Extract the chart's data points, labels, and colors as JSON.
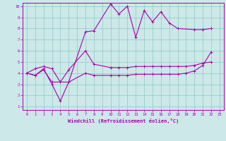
{
  "xlabel": "Windchill (Refroidissement éolien,°C)",
  "bg_color": "#cce8e8",
  "line_color": "#aa00aa",
  "grid_color": "#99cccc",
  "xlim": [
    -0.5,
    23.5
  ],
  "ylim": [
    0.7,
    10.3
  ],
  "xticks": [
    0,
    1,
    2,
    3,
    4,
    5,
    6,
    7,
    8,
    9,
    10,
    11,
    12,
    13,
    14,
    15,
    16,
    17,
    18,
    19,
    20,
    21,
    22,
    23
  ],
  "yticks": [
    1,
    2,
    3,
    4,
    5,
    6,
    7,
    8,
    9,
    10
  ],
  "line1_x": [
    0,
    1,
    2,
    3,
    4,
    5,
    7,
    8,
    10,
    11,
    12,
    13,
    14,
    15,
    16,
    17,
    18,
    20,
    21,
    22
  ],
  "line1_y": [
    4.0,
    3.8,
    4.4,
    3.0,
    1.5,
    3.2,
    7.7,
    7.8,
    10.2,
    9.3,
    10.0,
    7.2,
    9.6,
    8.6,
    9.5,
    8.5,
    8.0,
    7.9,
    7.9,
    8.0
  ],
  "line2_x": [
    0,
    1,
    2,
    3,
    4,
    5,
    7,
    8,
    10,
    11,
    12,
    13,
    14,
    15,
    16,
    17,
    18,
    19,
    20,
    21,
    22
  ],
  "line2_y": [
    4.0,
    4.4,
    4.6,
    4.4,
    3.2,
    4.3,
    6.0,
    4.8,
    4.5,
    4.5,
    4.5,
    4.6,
    4.6,
    4.6,
    4.6,
    4.6,
    4.6,
    4.6,
    4.7,
    4.9,
    5.0
  ],
  "line3_x": [
    0,
    1,
    2,
    3,
    4,
    5,
    7,
    8,
    10,
    11,
    12,
    13,
    14,
    15,
    16,
    17,
    18,
    19,
    20,
    21,
    22
  ],
  "line3_y": [
    4.0,
    3.8,
    4.3,
    3.2,
    3.2,
    3.2,
    4.0,
    3.8,
    3.8,
    3.8,
    3.8,
    3.9,
    3.9,
    3.9,
    3.9,
    3.9,
    3.9,
    4.0,
    4.2,
    4.7,
    5.9
  ]
}
